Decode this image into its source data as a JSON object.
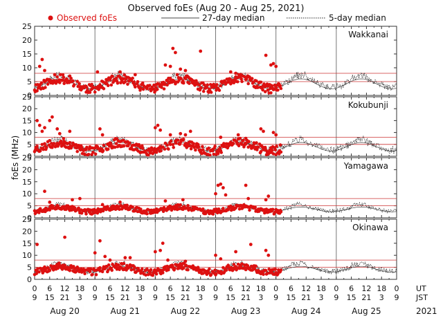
{
  "chart_data": {
    "type": "scatter",
    "title": "Observed foEs (Aug 20 - Aug 25, 2021)",
    "ylabel": "foEs (MHz)",
    "ylim": [
      0,
      25
    ],
    "yticks": [
      0,
      5,
      10,
      15,
      20,
      25
    ],
    "x_range_hours_ut": [
      0,
      144
    ],
    "x_ticks_ut": [
      "0",
      "6",
      "12",
      "18",
      "0",
      "6",
      "12",
      "18",
      "0",
      "6",
      "12",
      "18",
      "0",
      "6",
      "12",
      "18",
      "0",
      "6",
      "12",
      "18",
      "0",
      "6",
      "12",
      "18",
      "0"
    ],
    "x_ticks_jst": [
      "9",
      "15",
      "21",
      "3",
      "9",
      "15",
      "21",
      "3",
      "9",
      "15",
      "21",
      "3",
      "9",
      "15",
      "21",
      "3",
      "9",
      "15",
      "21",
      "3",
      "9",
      "15",
      "21",
      "3",
      "9"
    ],
    "days": [
      "Aug 20",
      "Aug 21",
      "Aug 22",
      "Aug 23",
      "Aug 24",
      "Aug 25"
    ],
    "ut_label": "UT",
    "jst_label": "JST",
    "year": "2021",
    "legend": {
      "observed": "Observed foEs",
      "median27": "27-day median",
      "median5": "5-day median"
    },
    "colors": {
      "observed": "#dd1111",
      "median27": "#444444",
      "median5": "#222222",
      "refline": "#cc3333"
    },
    "reference_lines_mhz": [
      5,
      8
    ],
    "observations_end_hour": 98,
    "stations": [
      {
        "name": "Wakkanai",
        "base": 4.2,
        "amp": 1.8,
        "noise": 1.6,
        "seed": 11,
        "spikes": [
          [
            2,
            10.5
          ],
          [
            3,
            13
          ],
          [
            4,
            9
          ],
          [
            8,
            7.5
          ],
          [
            14,
            7
          ],
          [
            25,
            8.5
          ],
          [
            34,
            8.5
          ],
          [
            40,
            7.5
          ],
          [
            52,
            11
          ],
          [
            54,
            10.5
          ],
          [
            55,
            17
          ],
          [
            56,
            15.5
          ],
          [
            58,
            9.5
          ],
          [
            60,
            9
          ],
          [
            66,
            16
          ],
          [
            78,
            8.5
          ],
          [
            80,
            8
          ],
          [
            92,
            14.5
          ],
          [
            94,
            11
          ],
          [
            95,
            11.5
          ],
          [
            96,
            10.5
          ]
        ]
      },
      {
        "name": "Kokubunji",
        "base": 4.0,
        "amp": 1.8,
        "noise": 1.8,
        "seed": 23,
        "spikes": [
          [
            1,
            15
          ],
          [
            2,
            13
          ],
          [
            3,
            10.5
          ],
          [
            4,
            12
          ],
          [
            6,
            15
          ],
          [
            7,
            16.5
          ],
          [
            9,
            11.5
          ],
          [
            10,
            9.5
          ],
          [
            14,
            10.5
          ],
          [
            26,
            11.5
          ],
          [
            27,
            9
          ],
          [
            48,
            12
          ],
          [
            49,
            13
          ],
          [
            50,
            11
          ],
          [
            54,
            9
          ],
          [
            58,
            9.5
          ],
          [
            60,
            9
          ],
          [
            62,
            10.5
          ],
          [
            74,
            8
          ],
          [
            81,
            9
          ],
          [
            84,
            7.5
          ],
          [
            90,
            11.5
          ],
          [
            91,
            10.5
          ],
          [
            95,
            10
          ],
          [
            96,
            9
          ]
        ]
      },
      {
        "name": "Yamagawa",
        "base": 3.5,
        "amp": 1.0,
        "noise": 1.0,
        "seed": 37,
        "spikes": [
          [
            4,
            11
          ],
          [
            6,
            6.5
          ],
          [
            15,
            7.5
          ],
          [
            18,
            8
          ],
          [
            27,
            5.5
          ],
          [
            34,
            6.5
          ],
          [
            52,
            7
          ],
          [
            59,
            7.5
          ],
          [
            72,
            10
          ],
          [
            73,
            13.5
          ],
          [
            74,
            14
          ],
          [
            75,
            12.5
          ],
          [
            76,
            9.5
          ],
          [
            84,
            13.5
          ],
          [
            85,
            8
          ],
          [
            92,
            7.5
          ],
          [
            93,
            9
          ]
        ]
      },
      {
        "name": "Okinawa",
        "base": 4.2,
        "amp": 1.2,
        "noise": 1.4,
        "seed": 53,
        "spikes": [
          [
            1,
            14.5
          ],
          [
            12,
            17.5
          ],
          [
            24,
            11
          ],
          [
            26,
            16
          ],
          [
            28,
            9.5
          ],
          [
            30,
            8
          ],
          [
            36,
            9
          ],
          [
            38,
            9
          ],
          [
            48,
            11.5
          ],
          [
            50,
            12
          ],
          [
            51,
            15
          ],
          [
            53,
            8
          ],
          [
            60,
            7.5
          ],
          [
            72,
            10
          ],
          [
            74,
            8.5
          ],
          [
            80,
            11.5
          ],
          [
            86,
            14.5
          ],
          [
            92,
            12
          ],
          [
            93,
            10
          ]
        ]
      }
    ]
  }
}
